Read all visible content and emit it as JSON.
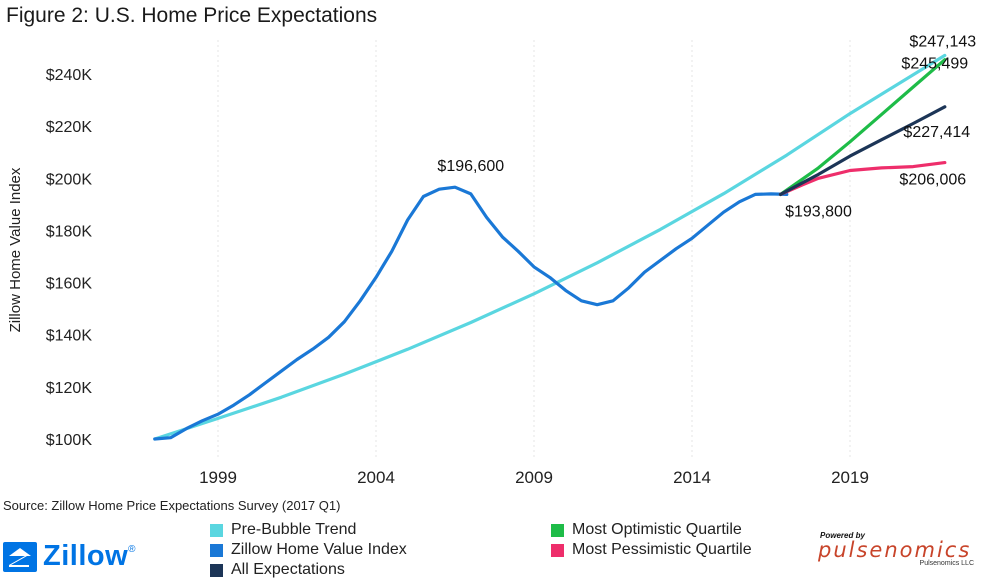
{
  "chart_data": {
    "type": "line",
    "title": "Figure 2: U.S. Home Price Expectations",
    "ylabel": "Zillow Home Value Index",
    "xlabel": "",
    "xlim": [
      1996,
      2022.5
    ],
    "ylim": [
      95000,
      250000
    ],
    "y_ticks": [
      {
        "value": 100000,
        "label": "$100K"
      },
      {
        "value": 120000,
        "label": "$120K"
      },
      {
        "value": 140000,
        "label": "$140K"
      },
      {
        "value": 160000,
        "label": "$160K"
      },
      {
        "value": 180000,
        "label": "$180K"
      },
      {
        "value": 200000,
        "label": "$200K"
      },
      {
        "value": 220000,
        "label": "$220K"
      },
      {
        "value": 240000,
        "label": "$240K"
      }
    ],
    "x_ticks": [
      {
        "value": 1999,
        "label": "1999"
      },
      {
        "value": 2004,
        "label": "2004"
      },
      {
        "value": 2009,
        "label": "2009"
      },
      {
        "value": 2014,
        "label": "2014"
      },
      {
        "value": 2019,
        "label": "2019"
      }
    ],
    "grid": "vertical",
    "series": [
      {
        "name": "Pre-Bubble Trend",
        "color": "#5ad6e0",
        "x": [
          1997,
          1999,
          2001,
          2003,
          2005,
          2007,
          2009,
          2011,
          2013,
          2015,
          2017,
          2019,
          2022
        ],
        "y": [
          100000,
          107900,
          116000,
          124900,
          134400,
          144700,
          155700,
          167600,
          180400,
          194100,
          208900,
          224800,
          247143
        ]
      },
      {
        "name": "Zillow Home Value Index",
        "color": "#1a78d6",
        "x": [
          1997,
          1997.5,
          1998,
          1998.5,
          1999,
          1999.5,
          2000,
          2000.5,
          2001,
          2001.5,
          2002,
          2002.5,
          2003,
          2003.5,
          2004,
          2004.5,
          2005,
          2005.5,
          2006,
          2006.5,
          2007,
          2007.5,
          2008,
          2008.5,
          2009,
          2009.5,
          2010,
          2010.5,
          2011,
          2011.5,
          2012,
          2012.5,
          2013,
          2013.5,
          2014,
          2014.5,
          2015,
          2015.5,
          2016,
          2016.5,
          2017
        ],
        "y": [
          100000,
          100500,
          104000,
          107000,
          109500,
          113000,
          117000,
          121500,
          126000,
          130500,
          134500,
          139000,
          145000,
          153000,
          162000,
          172000,
          184000,
          193000,
          195800,
          196600,
          194000,
          185000,
          177500,
          172000,
          166000,
          162000,
          157000,
          153000,
          151500,
          153000,
          158000,
          164000,
          168500,
          173000,
          177000,
          182000,
          187000,
          191000,
          193800,
          194000,
          193800
        ]
      },
      {
        "name": "Most Optimistic Quartile",
        "color": "#1ebc48",
        "x": [
          2016.8,
          2018,
          2019,
          2020,
          2021,
          2022
        ],
        "y": [
          193800,
          204000,
          214000,
          224500,
          235000,
          245499
        ]
      },
      {
        "name": "Most Pessimistic Quartile",
        "color": "#ee2e6b",
        "x": [
          2016.8,
          2017.5,
          2018,
          2019,
          2020,
          2021,
          2022
        ],
        "y": [
          193800,
          197500,
          200000,
          203000,
          204000,
          204500,
          206006
        ]
      },
      {
        "name": "All Expectations",
        "color": "#1c3557",
        "x": [
          2016.8,
          2018,
          2019,
          2020,
          2021,
          2022
        ],
        "y": [
          193800,
          201500,
          208500,
          214800,
          221000,
          227414
        ]
      }
    ],
    "annotations": [
      {
        "text": "$196,600",
        "x": 2007,
        "y": 196600,
        "color": "#111111"
      },
      {
        "text": "$193,800",
        "x": 2016.8,
        "y": 193800,
        "color": "#111111"
      },
      {
        "text": "$247,143",
        "x": 2022,
        "y": 247143,
        "color": "#111111"
      },
      {
        "text": "$245,499",
        "x": 2022,
        "y": 245499,
        "color": "#111111"
      },
      {
        "text": "$227,414",
        "x": 2022,
        "y": 227414,
        "color": "#111111"
      },
      {
        "text": "$206,006",
        "x": 2022,
        "y": 206006,
        "color": "#111111"
      }
    ],
    "legend": {
      "placement": "bottom",
      "items": [
        {
          "label": "Pre-Bubble Trend",
          "color": "#5ad6e0"
        },
        {
          "label": "Zillow Home Value Index",
          "color": "#1a78d6"
        },
        {
          "label": "All Expectations",
          "color": "#1c3557"
        },
        {
          "label": "Most Optimistic Quartile",
          "color": "#1ebc48"
        },
        {
          "label": "Most Pessimistic Quartile",
          "color": "#ee2e6b"
        }
      ]
    }
  },
  "source": "Source: Zillow Home Price Expectations Survey (2017 Q1)",
  "branding": {
    "zillow": "Zillow",
    "zillow_mark": "®",
    "zillow_color": "#0074e4",
    "pulse_powered": "Powered by",
    "pulse_name": "pulsenomics",
    "pulse_sub": "Pulsenomics LLC",
    "pulse_color": "#c8442a"
  }
}
